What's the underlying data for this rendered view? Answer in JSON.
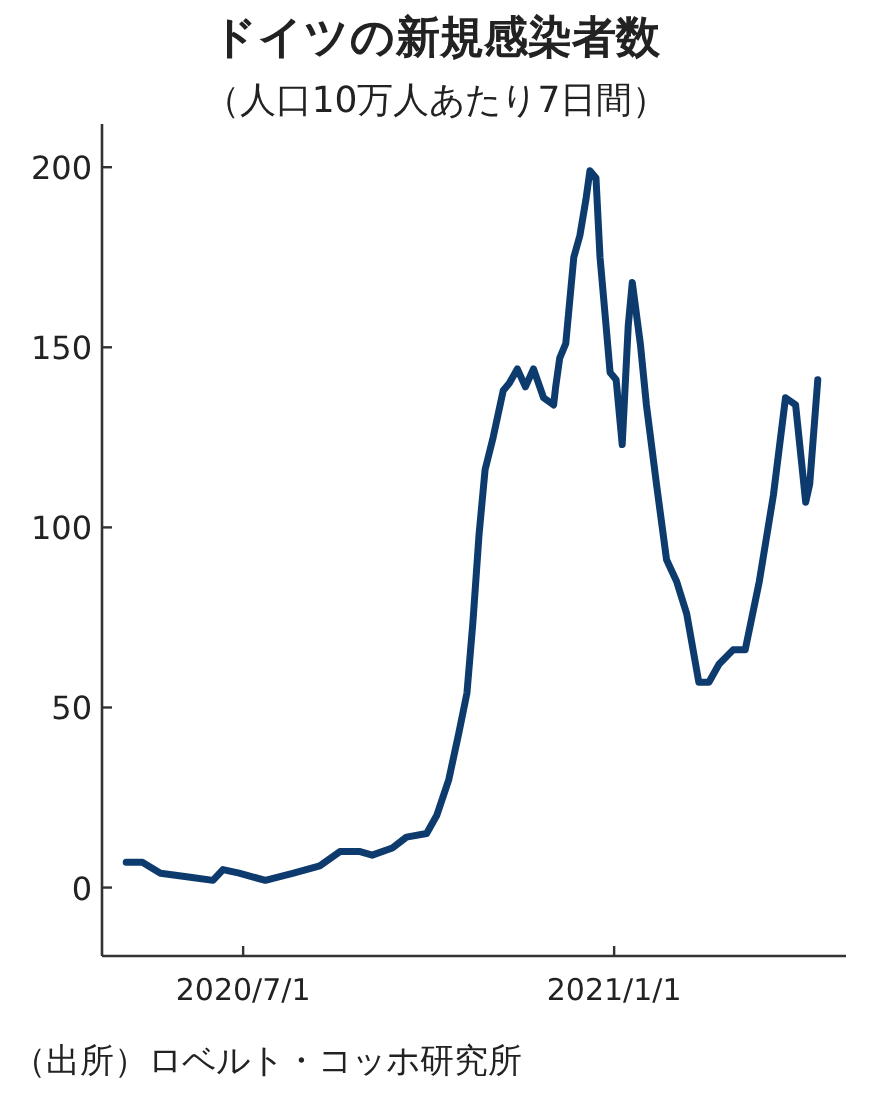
{
  "chart_data": {
    "type": "line",
    "title": "ドイツの新規感染者数",
    "subtitle": "（人口10万人あたり7日間）",
    "annotations": [
      "（出所）ロベルト・コッホ研究所"
    ],
    "xlim": [
      "2020-04-22",
      "2021-04-26"
    ],
    "xticks": [
      {
        "value": "2020-07-01",
        "label": "2020/7/1"
      },
      {
        "value": "2021-01-01",
        "label": "2021/1/1"
      }
    ],
    "ylim": [
      -19,
      212
    ],
    "yticks": [
      0,
      50,
      100,
      150,
      200
    ],
    "grid": false,
    "marker": "none",
    "line_style": "solid",
    "series": [
      {
        "color": "#0d3b6e",
        "x": [
          "2020-05-04",
          "2020-05-12",
          "2020-05-21",
          "2020-06-03",
          "2020-06-16",
          "2020-06-21",
          "2020-06-29",
          "2020-07-12",
          "2020-07-26",
          "2020-08-08",
          "2020-08-18",
          "2020-08-28",
          "2020-09-03",
          "2020-09-13",
          "2020-09-20",
          "2020-09-30",
          "2020-10-05",
          "2020-10-11",
          "2020-10-16",
          "2020-10-20",
          "2020-10-23",
          "2020-10-26",
          "2020-10-29",
          "2020-11-02",
          "2020-11-07",
          "2020-11-10",
          "2020-11-14",
          "2020-11-18",
          "2020-11-22",
          "2020-11-27",
          "2020-12-02",
          "2020-12-03",
          "2020-12-05",
          "2020-12-08",
          "2020-12-12",
          "2020-12-15",
          "2020-12-18",
          "2020-12-20",
          "2020-12-23",
          "2020-12-25",
          "2020-12-28",
          "2020-12-30",
          "2021-01-02",
          "2021-01-05",
          "2021-01-08",
          "2021-01-10",
          "2021-01-14",
          "2021-01-17",
          "2021-01-22",
          "2021-01-27",
          "2021-02-01",
          "2021-02-06",
          "2021-02-12",
          "2021-02-17",
          "2021-02-22",
          "2021-03-01",
          "2021-03-07",
          "2021-03-14",
          "2021-03-21",
          "2021-03-27",
          "2021-04-01",
          "2021-04-06",
          "2021-04-08",
          "2021-04-12"
        ],
        "values": [
          7,
          7,
          4,
          3,
          2,
          5,
          4,
          2,
          4,
          6,
          10,
          10,
          9,
          11,
          14,
          15,
          20,
          30,
          43,
          54,
          74,
          98,
          116,
          125,
          138,
          140,
          144,
          139,
          144,
          136,
          134,
          139,
          147,
          151,
          175,
          181,
          191,
          199,
          197,
          175,
          156,
          143,
          141,
          123,
          156,
          168,
          151,
          134,
          112,
          91,
          85,
          76,
          57,
          57,
          62,
          66,
          66,
          85,
          109,
          136,
          134,
          107,
          112,
          141
        ]
      }
    ]
  }
}
